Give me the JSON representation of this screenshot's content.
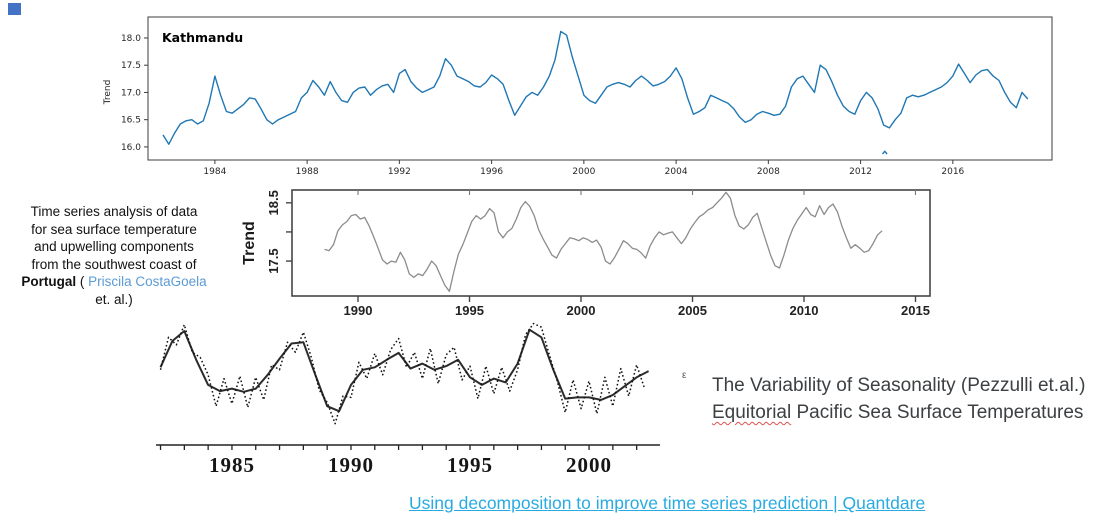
{
  "decor": {
    "corner_square_color": "#4472c4"
  },
  "left_note": {
    "lines": [
      "Time series analysis of data",
      "for sea surface temperature",
      "and upwelling components",
      "from the southwest coast of"
    ],
    "portugal_bold": "Portugal",
    "mid": " ( ",
    "author_link": "Priscila CostaGoela",
    "last_line": "et. al.)",
    "link_color": "#5b9bd5"
  },
  "right_note": {
    "tiny_glyph": "ε",
    "line1": "The Variability of Seasonality (Pezzulli et.al.)",
    "line2_misspelled": "Equitorial",
    "line2_rest": " Pacific Sea Surface Temperatures"
  },
  "footer_link": {
    "text": "Using decomposition to improve time series prediction | Quantdare",
    "color": "#29abe2"
  },
  "chart_data": [
    {
      "id": "kathmandu",
      "type": "line",
      "title": "Kathmandu",
      "ylabel": "Trend",
      "xlim": [
        1981.1,
        2020.3
      ],
      "ylim": [
        15.76,
        18.385
      ],
      "x_ticks": [
        1984,
        1988,
        1992,
        1996,
        2000,
        2004,
        2008,
        2012,
        2016
      ],
      "y_ticks": [
        16.0,
        16.5,
        17.0,
        17.5,
        18.0
      ],
      "line_color": "#1f77b4",
      "grid": false,
      "series": {
        "x_start": 1981.75,
        "x_step": 0.25,
        "y": [
          16.22,
          16.05,
          16.25,
          16.42,
          16.48,
          16.5,
          16.42,
          16.48,
          16.8,
          17.3,
          16.95,
          16.65,
          16.62,
          16.7,
          16.78,
          16.9,
          16.88,
          16.7,
          16.5,
          16.42,
          16.5,
          16.55,
          16.6,
          16.65,
          16.9,
          17.0,
          17.22,
          17.1,
          16.95,
          17.2,
          17.0,
          16.85,
          16.82,
          17.0,
          17.08,
          17.1,
          16.95,
          17.05,
          17.12,
          17.15,
          17.0,
          17.35,
          17.42,
          17.2,
          17.08,
          17.0,
          17.05,
          17.1,
          17.3,
          17.62,
          17.5,
          17.3,
          17.25,
          17.2,
          17.12,
          17.1,
          17.18,
          17.32,
          17.25,
          17.15,
          16.85,
          16.58,
          16.75,
          16.92,
          17.0,
          16.95,
          17.1,
          17.3,
          17.6,
          18.12,
          18.05,
          17.65,
          17.3,
          16.95,
          16.85,
          16.8,
          16.95,
          17.1,
          17.15,
          17.18,
          17.15,
          17.1,
          17.22,
          17.3,
          17.22,
          17.12,
          17.15,
          17.2,
          17.3,
          17.45,
          17.25,
          16.9,
          16.6,
          16.65,
          16.72,
          16.95,
          16.9,
          16.85,
          16.8,
          16.7,
          16.55,
          16.45,
          16.5,
          16.6,
          16.65,
          16.62,
          16.58,
          16.6,
          16.75,
          17.1,
          17.25,
          17.3,
          17.15,
          17.0,
          17.5,
          17.42,
          17.2,
          16.95,
          16.75,
          16.65,
          16.6,
          16.85,
          17.0,
          16.9,
          16.7,
          16.4,
          16.35,
          16.5,
          16.62,
          16.9,
          16.95,
          16.92,
          16.95,
          17.0,
          17.05,
          17.1,
          17.18,
          17.3,
          17.52,
          17.35,
          17.18,
          17.32,
          17.4,
          17.42,
          17.3,
          17.22,
          17.0,
          16.82,
          16.72,
          17.0,
          16.88
        ]
      },
      "outlier_segment": {
        "x": [
          2012.95,
          2013.05,
          2013.15
        ],
        "y": [
          15.87,
          15.92,
          15.87
        ]
      }
    },
    {
      "id": "portugal",
      "type": "line",
      "ylabel": "Trend",
      "xlim": [
        1987.04,
        2015.65
      ],
      "ylim": [
        16.9,
        18.72
      ],
      "x_ticks": [
        1990,
        1995,
        2000,
        2005,
        2010,
        2015
      ],
      "y_ticks_all": [
        17.5,
        18.0,
        18.5
      ],
      "y_ticks_labeled": [
        17.5,
        18.5
      ],
      "line_color": "#8c8c8c",
      "grid": false,
      "series": {
        "x_start": 1988.5,
        "x_step": 0.2,
        "y": [
          17.7,
          17.68,
          17.78,
          18.02,
          18.12,
          18.18,
          18.28,
          18.3,
          18.22,
          18.25,
          18.1,
          17.92,
          17.72,
          17.52,
          17.45,
          17.5,
          17.48,
          17.65,
          17.52,
          17.28,
          17.22,
          17.28,
          17.25,
          17.36,
          17.5,
          17.42,
          17.25,
          17.08,
          16.98,
          17.32,
          17.62,
          17.78,
          17.98,
          18.18,
          18.28,
          18.22,
          18.28,
          18.4,
          18.33,
          18.0,
          17.9,
          18.0,
          18.06,
          18.22,
          18.42,
          18.52,
          18.44,
          18.28,
          18.04,
          17.88,
          17.74,
          17.6,
          17.55,
          17.7,
          17.8,
          17.9,
          17.88,
          17.85,
          17.9,
          17.87,
          17.82,
          17.86,
          17.74,
          17.5,
          17.45,
          17.56,
          17.7,
          17.85,
          17.8,
          17.72,
          17.7,
          17.64,
          17.55,
          17.76,
          17.9,
          18.0,
          17.95,
          17.98,
          18.0,
          17.9,
          17.8,
          17.9,
          18.05,
          18.16,
          18.26,
          18.31,
          18.38,
          18.42,
          18.5,
          18.58,
          18.68,
          18.58,
          18.28,
          18.1,
          18.05,
          18.12,
          18.25,
          18.32,
          18.08,
          17.84,
          17.6,
          17.42,
          17.38,
          17.6,
          17.86,
          18.06,
          18.2,
          18.31,
          18.42,
          18.3,
          18.26,
          18.45,
          18.3,
          18.42,
          18.48,
          18.34,
          18.1,
          17.9,
          17.72,
          17.78,
          17.72,
          17.65,
          17.68,
          17.8,
          17.95,
          18.02
        ]
      }
    },
    {
      "id": "pezzulli",
      "type": "line",
      "xlim": [
        1981.81,
        2002.98
      ],
      "ylim": [
        0,
        10.6
      ],
      "x_ticks": [
        1985,
        1990,
        1995,
        2000
      ],
      "x_minor_ticks": [
        1982,
        1983,
        1984,
        1985,
        1986,
        1987,
        1988,
        1989,
        1990,
        1991,
        1992,
        1993,
        1994,
        1995,
        1996,
        1997,
        1998,
        1999,
        2000,
        2001,
        2002
      ],
      "grid": false,
      "series": [
        {
          "name": "trend",
          "style": "solid",
          "color": "#2b2b2b",
          "x_start": 1982.0,
          "x_step": 0.5,
          "y": [
            6.2,
            8.3,
            9.1,
            6.8,
            4.8,
            4.3,
            4.5,
            4.25,
            4.5,
            5.6,
            6.9,
            8.1,
            8.2,
            5.6,
            3.1,
            2.7,
            4.8,
            6.0,
            6.2,
            6.8,
            7.35,
            6.1,
            6.5,
            6.0,
            6.3,
            6.8,
            5.4,
            4.8,
            5.3,
            5.0,
            6.5,
            9.2,
            8.6,
            6.0,
            3.7,
            3.8,
            3.8,
            3.6,
            4.0,
            4.7,
            5.4,
            5.9
          ]
        },
        {
          "name": "observed",
          "style": "dotted",
          "color": "#111111",
          "x_start": 1982.0,
          "x_step": 0.3333,
          "y": [
            6.0,
            8.6,
            8.0,
            9.6,
            7.4,
            7.0,
            5.6,
            3.1,
            5.3,
            3.3,
            5.5,
            3.0,
            5.4,
            3.6,
            6.4,
            6.0,
            8.2,
            7.4,
            9.0,
            7.0,
            4.4,
            3.4,
            1.7,
            3.9,
            3.8,
            6.6,
            5.3,
            7.3,
            5.6,
            7.6,
            8.5,
            6.2,
            7.4,
            5.3,
            7.7,
            4.9,
            7.2,
            7.8,
            5.2,
            6.3,
            3.7,
            6.3,
            4.1,
            6.2,
            4.3,
            6.0,
            8.8,
            9.7,
            9.4,
            7.2,
            5.1,
            2.6,
            5.2,
            2.9,
            5.1,
            2.5,
            5.4,
            3.1,
            6.1,
            3.9,
            6.4,
            4.5
          ]
        }
      ]
    }
  ]
}
